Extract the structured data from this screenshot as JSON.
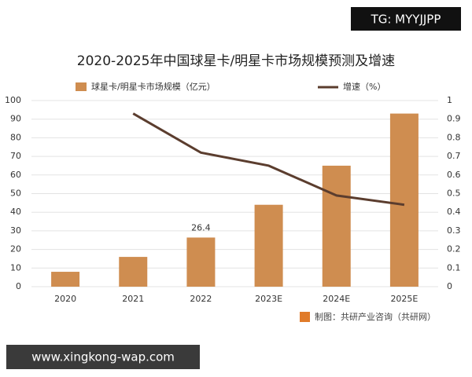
{
  "chart_data": {
    "type": "bar_line",
    "title": "2020-2025年中国球星卡/明星卡市场规模预测及增速",
    "categories": [
      "2020",
      "2021",
      "2022",
      "2023E",
      "2024E",
      "2025E"
    ],
    "series": [
      {
        "name": "球星卡/明星卡市场规模（亿元）",
        "type": "bar",
        "color": "#cf8d50",
        "values": [
          8,
          16,
          26.4,
          44,
          65,
          93
        ],
        "value_labels": [
          null,
          null,
          "26.4",
          null,
          null,
          null
        ]
      },
      {
        "name": "增速（%）",
        "type": "line",
        "axis": "y2",
        "color": "#5b3d2e",
        "values": [
          null,
          0.93,
          0.72,
          0.65,
          0.49,
          0.44
        ]
      }
    ],
    "ylim": [
      0,
      100
    ],
    "yticks": [
      0,
      10,
      20,
      30,
      40,
      50,
      60,
      70,
      80,
      90,
      100
    ],
    "y2lim": [
      0,
      1
    ],
    "y2ticks": [
      0,
      0.1,
      0.2,
      0.3,
      0.4,
      0.5,
      0.6,
      0.7,
      0.8,
      0.9,
      1
    ],
    "grid": true,
    "source": "制图：共研产业咨询（共研网）"
  },
  "watermark_top": "TG: MYYJJPP",
  "watermark_bottom": "www.xingkong-wap.com"
}
